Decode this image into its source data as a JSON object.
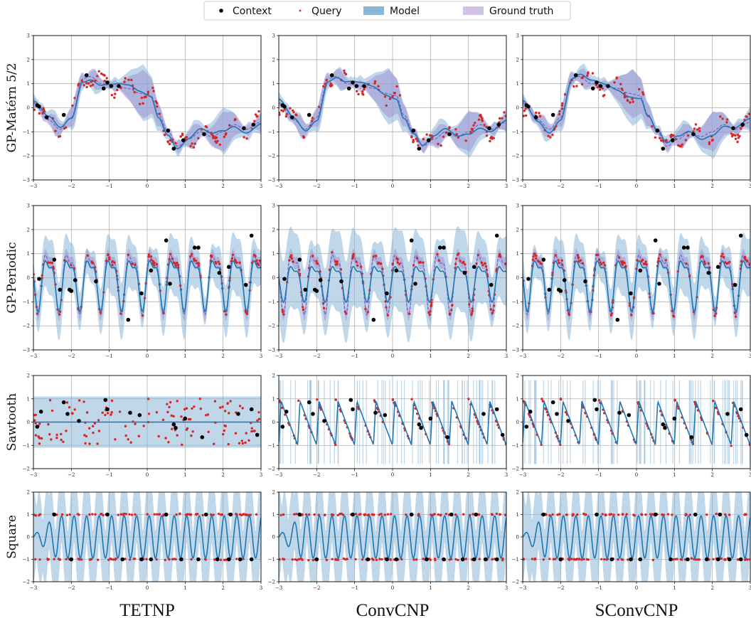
{
  "legend": {
    "placement": "top-center",
    "items": [
      {
        "label": "Context",
        "marker": "dot",
        "color": "#000000"
      },
      {
        "label": "Query",
        "marker": "small-dot",
        "color": "#d62728"
      },
      {
        "label": "Model",
        "marker": "patch",
        "color": "#8bb6d6"
      },
      {
        "label": "Ground truth",
        "marker": "patch",
        "color": "#c6b3e0"
      }
    ]
  },
  "columns": [
    "TETNP",
    "ConvCNP",
    "SConvCNP"
  ],
  "rows": [
    {
      "label": "GP-Matérn 5/2",
      "kind": "matern",
      "ylim": [
        -3,
        3
      ],
      "yticks": [
        -3,
        -2,
        -1,
        0,
        1,
        2,
        3
      ]
    },
    {
      "label": "GP-Periodic",
      "kind": "periodic",
      "ylim": [
        -3,
        3
      ],
      "yticks": [
        -3,
        -2,
        -1,
        0,
        1,
        2,
        3
      ]
    },
    {
      "label": "Sawtooth",
      "kind": "sawtooth",
      "ylim": [
        -2,
        2
      ],
      "yticks": [
        -2,
        -1,
        0,
        1,
        2
      ]
    },
    {
      "label": "Square",
      "kind": "square",
      "ylim": [
        -2,
        2
      ],
      "yticks": [
        -2,
        -1,
        0,
        1,
        2
      ]
    }
  ],
  "xaxis": {
    "xlim": [
      -3,
      3
    ],
    "xticks": [
      -3,
      -2,
      -1,
      0,
      1,
      2,
      3
    ]
  },
  "grid": true,
  "colors": {
    "model_line": "#1f77b4",
    "model_band": "#8bb6d6",
    "truth_band": "#9b8fd0",
    "truth_line": "#8060c0",
    "query": "#d62728",
    "context": "#000000"
  },
  "chart_data": [
    {
      "type": "line",
      "row": "GP-Matérn 5/2",
      "context": {
        "x": [
          -2.9,
          -2.85,
          -2.65,
          -2.2,
          -1.6,
          -1.15,
          -1.05,
          -0.95,
          -0.75,
          0.55,
          0.7,
          0.95,
          1.5,
          2.55,
          2.8
        ],
        "y": [
          0.1,
          0.05,
          -0.4,
          -0.3,
          1.35,
          0.8,
          1.05,
          0.9,
          0.9,
          -0.95,
          -1.7,
          -1.35,
          -1.1,
          -0.85,
          -0.7
        ]
      },
      "ground_truth_mean": {
        "x": [
          -3,
          -2.6,
          -2.3,
          -2.0,
          -1.7,
          -1.5,
          -1.2,
          -0.8,
          -0.5,
          -0.2,
          0.1,
          0.3,
          0.55,
          0.8,
          1.1,
          1.4,
          1.7,
          2.0,
          2.3,
          2.6,
          3.0
        ],
        "y": [
          0.2,
          -0.5,
          -0.9,
          -0.4,
          1.2,
          1.3,
          1.0,
          0.9,
          0.8,
          0.6,
          0.5,
          -0.3,
          -1.0,
          -1.6,
          -1.3,
          -1.0,
          -1.2,
          -1.0,
          -0.7,
          -0.9,
          -0.6
        ]
      }
    },
    {
      "type": "line",
      "row": "GP-Periodic",
      "context": {
        "x": [
          -2.85,
          -2.45,
          -2.3,
          -2.05,
          -2.0,
          -1.9,
          -1.35,
          -0.5,
          -0.15,
          0.1,
          0.5,
          0.6,
          1.25,
          1.35,
          1.9,
          2.15,
          2.6,
          2.75
        ],
        "y": [
          -0.05,
          0.75,
          -0.5,
          -0.5,
          -0.55,
          -0.1,
          -0.15,
          -1.75,
          -0.65,
          0.3,
          1.55,
          -0.25,
          1.25,
          1.25,
          0.2,
          0.45,
          -0.3,
          1.75
        ]
      }
    },
    {
      "type": "line",
      "row": "Sawtooth",
      "context": {
        "x": [
          -2.9,
          -2.8,
          -2.2,
          -2.1,
          -1.8,
          -1.1,
          -1.05,
          -0.45,
          -0.2,
          0.7,
          0.75,
          1.0,
          1.45,
          2.4,
          2.75,
          2.9
        ],
        "y": [
          -0.2,
          0.45,
          0.85,
          0.35,
          0.05,
          0.95,
          0.55,
          0.4,
          0.3,
          -0.1,
          -0.25,
          0.15,
          -0.65,
          0.35,
          0.55,
          -0.55
        ]
      },
      "period": 0.5,
      "amplitude": 1.0
    },
    {
      "type": "line",
      "row": "Square",
      "context": {
        "x": [
          -2.45,
          -2.0,
          -1.05,
          -0.65,
          -0.15,
          0.1,
          0.5,
          0.9,
          1.35,
          1.55,
          1.85,
          2.15,
          2.2,
          2.45,
          2.75
        ],
        "y": [
          1.0,
          -1.0,
          1.0,
          -1.0,
          -1.0,
          -1.0,
          1.0,
          -1.0,
          -1.0,
          1.0,
          -1.0,
          -1.0,
          1.0,
          -1.0,
          -1.0
        ]
      },
      "period": 0.33,
      "amplitude": 1.0
    }
  ]
}
